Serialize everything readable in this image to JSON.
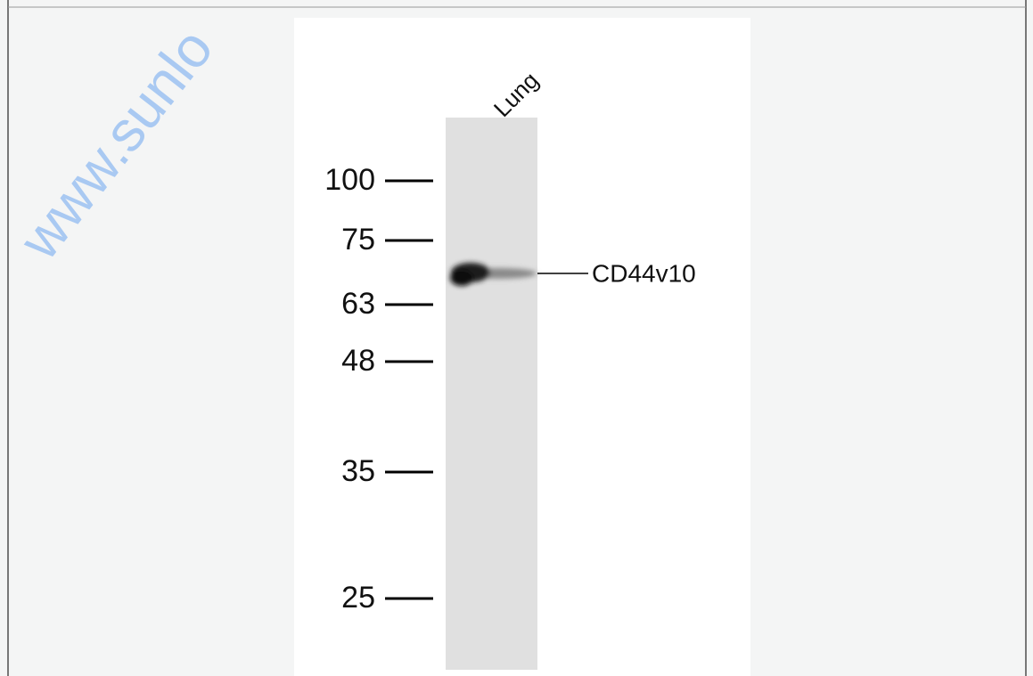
{
  "watermark": "www.sunlo",
  "blot": {
    "lane_label": "Lung",
    "markers": [
      "100",
      "75",
      "63",
      "48",
      "35",
      "25"
    ],
    "band_label": "CD44v10"
  }
}
